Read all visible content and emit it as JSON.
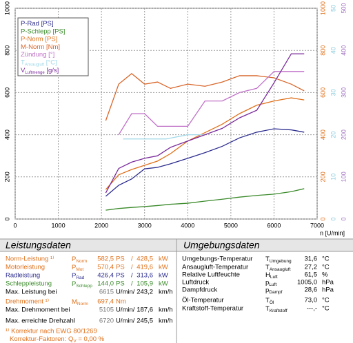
{
  "chart_data": {
    "type": "line",
    "xlabel": "n [U/min]",
    "xlim": [
      0,
      7000
    ],
    "xticks": [
      0,
      1000,
      2000,
      3000,
      4000,
      5000,
      6000,
      7000
    ],
    "ylim": [
      0,
      1000
    ],
    "yticks": [
      0,
      200,
      400,
      600,
      800,
      1000
    ],
    "y2lim": [
      0,
      1000
    ],
    "y2ticks": [
      0,
      200,
      400,
      600,
      800,
      1000
    ],
    "y2color": "#e0701a",
    "y3lim": [
      0,
      50
    ],
    "y3ticks": [
      0,
      10,
      20,
      30,
      40,
      50
    ],
    "y3color": "#8ccbdc",
    "y4lim": [
      0,
      500
    ],
    "y4ticks": [
      0,
      100,
      200,
      300,
      400,
      500
    ],
    "y4color": "#a070c0",
    "grid": true,
    "series": [
      {
        "name": "P-Rad [PS]",
        "color": "#2b2b8f",
        "axis": "y",
        "x": [
          2100,
          2400,
          2700,
          3000,
          3300,
          3600,
          4000,
          4400,
          4800,
          5200,
          5600,
          6000,
          6400,
          6700
        ],
        "values": [
          108,
          160,
          190,
          238,
          245,
          262,
          288,
          315,
          345,
          385,
          412,
          428,
          423,
          412
        ]
      },
      {
        "name": "P-Schlepp [PS]",
        "color": "#3a8a2a",
        "axis": "y",
        "x": [
          2100,
          2400,
          2700,
          3000,
          3300,
          3600,
          4000,
          4400,
          4800,
          5200,
          5600,
          6000,
          6400,
          6700
        ],
        "values": [
          42,
          50,
          55,
          59,
          64,
          70,
          75,
          85,
          94,
          104,
          112,
          118,
          130,
          144
        ]
      },
      {
        "name": "P-Norm [PS]",
        "color": "#e0701a",
        "axis": "y",
        "x": [
          2100,
          2400,
          2700,
          3000,
          3300,
          3600,
          4000,
          4400,
          4800,
          5200,
          5600,
          6000,
          6400,
          6700
        ],
        "values": [
          140,
          210,
          235,
          255,
          275,
          310,
          370,
          410,
          450,
          500,
          540,
          560,
          575,
          565
        ]
      },
      {
        "name": "M-Norm [Nm]",
        "color": "#d8662a",
        "axis": "y2",
        "x": [
          2100,
          2400,
          2700,
          3000,
          3300,
          3600,
          4000,
          4400,
          4800,
          5200,
          5600,
          6000,
          6400,
          6700
        ],
        "values": [
          467,
          640,
          690,
          640,
          650,
          620,
          640,
          630,
          650,
          680,
          680,
          670,
          640,
          608
        ]
      },
      {
        "name": "Zündung [°]",
        "color": "#c070c8",
        "axis": "y3",
        "x": [
          2400,
          2700,
          3000,
          3300,
          3600,
          4000,
          4400,
          4800,
          5200,
          5600,
          6000,
          6400,
          6700
        ],
        "values": [
          20,
          25,
          25,
          22,
          22,
          22,
          28,
          28,
          30,
          31,
          35,
          35,
          35
        ]
      },
      {
        "name": "T",
        "name_sub": "Ansaugluft",
        "name_unit": " [°C]",
        "color": "#9fd8e8",
        "axis": "y3",
        "x": [
          2500,
          3000,
          3500,
          4000,
          4400
        ],
        "values": [
          19,
          19,
          19,
          20,
          20
        ]
      },
      {
        "name": "V",
        "name_sub": "Luftmenge",
        "name_unit": " [g/s]",
        "color": "#7a2a9a",
        "axis": "y4",
        "x": [
          2100,
          2400,
          2700,
          3000,
          3300,
          3600,
          4000,
          4400,
          4800,
          5200,
          5600,
          6000,
          6400,
          6700
        ],
        "values": [
          62,
          120,
          135,
          144,
          150,
          170,
          185,
          200,
          215,
          240,
          258,
          323,
          392,
          392
        ]
      }
    ]
  },
  "leistungsdaten": {
    "title": "Leistungsdaten",
    "rows": [
      {
        "label": "Norm-Leistung ¹⁾",
        "sym": "P",
        "sub": "Norm",
        "v1": "582,5",
        "u1": "PS",
        "sep": "/",
        "v2": "428,5",
        "u2": "kW",
        "color": "#e0701a"
      },
      {
        "label": "Motorleistung",
        "sym": "P",
        "sub": "Mot",
        "v1": "570,4",
        "u1": "PS",
        "sep": "/",
        "v2": "419,6",
        "u2": "kW",
        "color": "#e0701a"
      },
      {
        "label": "Radleistung",
        "sym": "P",
        "sub": "Rad",
        "v1": "426,4",
        "u1": "PS",
        "sep": "/",
        "v2": "313,6",
        "u2": "kW",
        "color": "#2b2b8f"
      },
      {
        "label": "Schleppleistung",
        "sym": "P",
        "sub": "Schlepp",
        "v1": "144,0",
        "u1": "PS",
        "sep": "/",
        "v2": "105,9",
        "u2": "kW",
        "color": "#3a8a2a"
      },
      {
        "label": "Max. Leistung bei",
        "v1": "6615",
        "u1": "U/min/",
        "v2": "243,2",
        "u2": "km/h",
        "color": "#000000"
      },
      {
        "label": "Drehmoment ¹⁾",
        "sym": "M",
        "sub": "Norm",
        "v1": "697,4",
        "u1": "Nm",
        "color": "#e0701a"
      },
      {
        "label": "Max. Drehmoment bei",
        "v1": "5105",
        "u1": "U/min/",
        "v2": "187,6",
        "u2": "km/h",
        "color": "#000000"
      },
      {
        "label": "Max. erreichte Drehzahl",
        "v1": "6720",
        "u1": "U/min/",
        "v2": "245,5",
        "u2": "km/h",
        "color": "#000000"
      }
    ],
    "footnote": {
      "line1": "¹⁾ Korrektur nach EWG 80/1269",
      "pre": "Korrektur-Faktoren: Q",
      "sub": "V",
      "post": " =   0,00 %"
    }
  },
  "umgebungsdaten": {
    "title": "Umgebungsdaten",
    "rows": [
      {
        "label": "Umgebungs-Temperatur",
        "sym": "T",
        "sub": "Umgebung",
        "v": "31,6",
        "u": "°C"
      },
      {
        "label": "Ansaugluft-Temperatur",
        "sym": "T",
        "sub": "Ansaugluft",
        "v": "27,2",
        "u": "°C"
      },
      {
        "label": "Relative Luftfeuchte",
        "sym": "H",
        "sub": "Luft",
        "v": "61,5",
        "u": "%"
      },
      {
        "label": "Luftdruck",
        "sym": "p",
        "sub": "Luft",
        "v": "1005,0",
        "u": "hPa"
      },
      {
        "label": "Dampfdruck",
        "sym": "p",
        "sub": "Dampf",
        "v": "28,6",
        "u": "hPa"
      },
      {
        "label": "Öl-Temperatur",
        "sym": "T",
        "sub": "Öl",
        "v": "73,0",
        "u": "°C"
      },
      {
        "label": "Kraftstoff-Temperatur",
        "sym": "T",
        "sub": "Kraftstoff",
        "v": "---,-",
        "u": "°C"
      }
    ]
  }
}
